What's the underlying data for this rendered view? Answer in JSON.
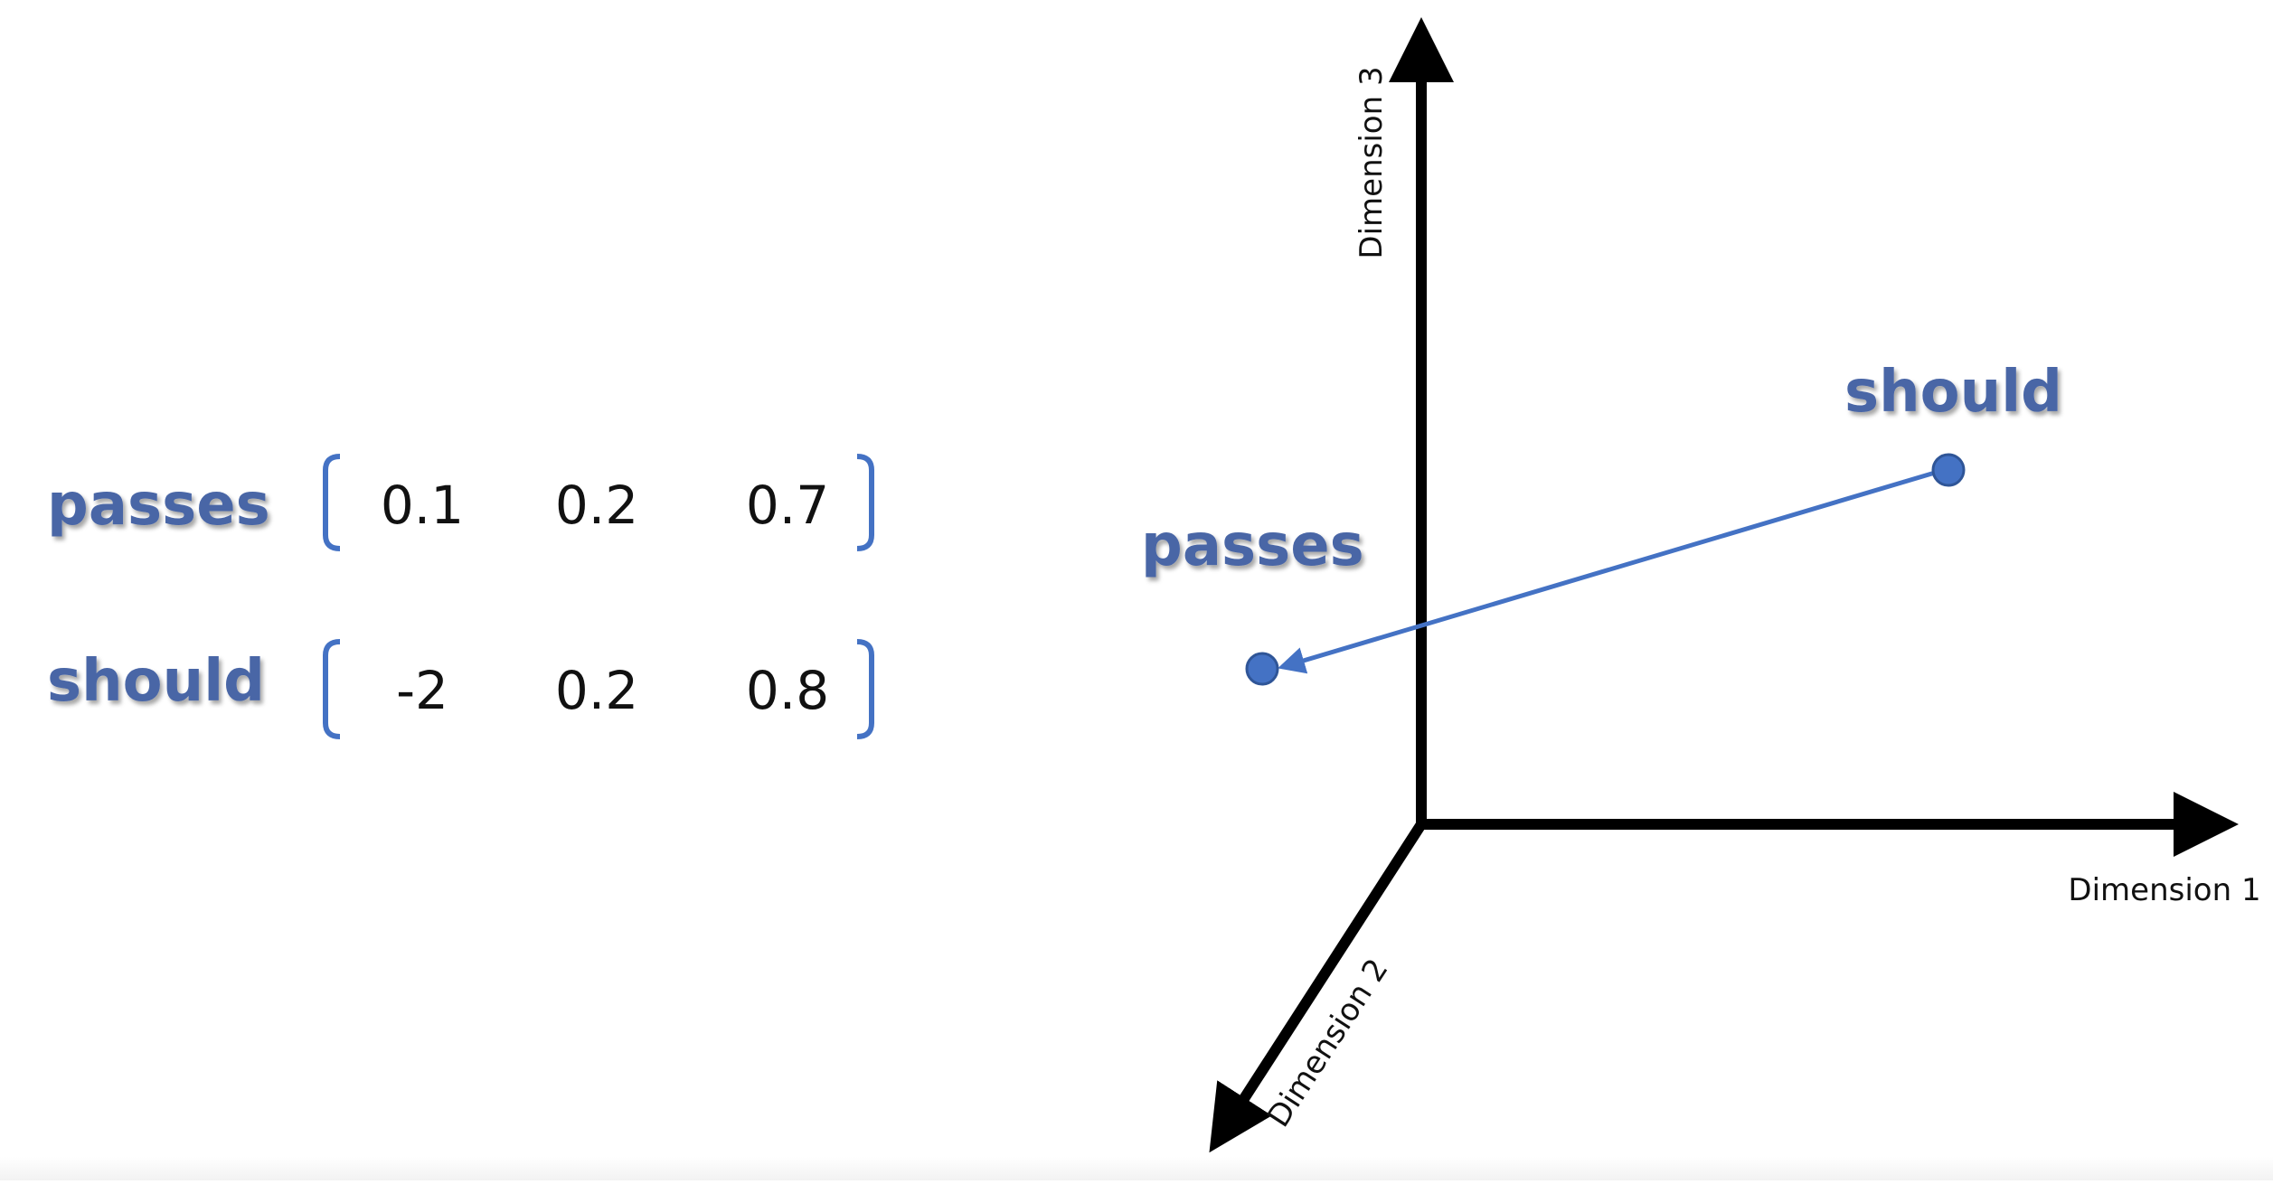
{
  "matrix": {
    "rows": [
      {
        "label": "passes",
        "values": [
          "0.1",
          "0.2",
          "0.7"
        ]
      },
      {
        "label": "should",
        "values": [
          "-2",
          "0.2",
          "0.8"
        ]
      }
    ]
  },
  "plot": {
    "axes": {
      "x_label": "Dimension 1",
      "y_label": "Dimension 2",
      "z_label": "Dimension 3"
    },
    "points": [
      {
        "label": "passes"
      },
      {
        "label": "should"
      }
    ],
    "arrow": {
      "from": "should",
      "to": "passes"
    }
  },
  "colors": {
    "accent": "#4472c4",
    "word_text": "#4a66a6",
    "axis": "#000000",
    "point_fill": "#4472c4",
    "point_stroke": "#2f5597"
  }
}
